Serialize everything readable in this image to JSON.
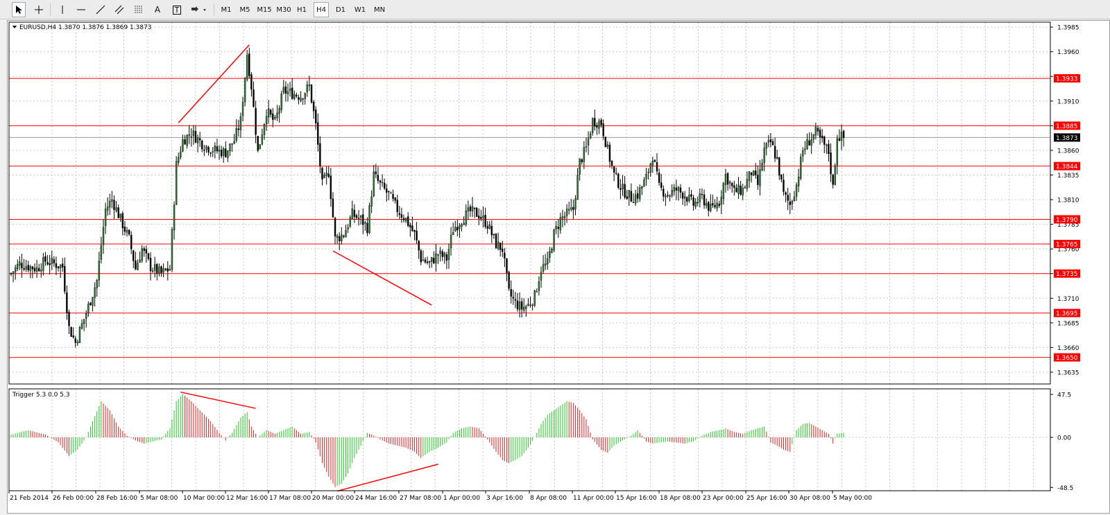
{
  "toolbar": {
    "timeframes": [
      "M1",
      "M5",
      "M15",
      "M30",
      "H1",
      "H4",
      "D1",
      "W1",
      "MN"
    ],
    "active_timeframe": "H4",
    "tools": [
      {
        "name": "cursor-icon"
      },
      {
        "name": "crosshair-icon"
      },
      {
        "name": "vertical-line-icon"
      },
      {
        "name": "horizontal-line-icon"
      },
      {
        "name": "trendline-icon"
      },
      {
        "name": "equidistant-channel-icon"
      },
      {
        "name": "fibonacci-icon"
      },
      {
        "name": "text-icon",
        "glyph": "A"
      },
      {
        "name": "text-label-icon",
        "glyph": "T"
      },
      {
        "name": "arrows-icon"
      }
    ]
  },
  "main_chart": {
    "header_text": "EURUSD,H4  1.3870 1.3876 1.3869 1.3873",
    "symbol": "EURUSD",
    "timeframe": "H4",
    "ohlc": {
      "open": "1.3870",
      "high": "1.3876",
      "low": "1.3869",
      "close": "1.3873"
    },
    "price_min": 1.3623,
    "price_max": 1.399,
    "price_ticks": [
      "1.3985",
      "1.3960",
      "1.3935",
      "1.3910",
      "1.3885",
      "1.3860",
      "1.3835",
      "1.3810",
      "1.3785",
      "1.3760",
      "1.3735",
      "1.3710",
      "1.3685",
      "1.3660",
      "1.3635"
    ],
    "current_price": "1.3873",
    "horizontal_levels": [
      "1.3933",
      "1.3885",
      "1.3844",
      "1.3790",
      "1.3765",
      "1.3735",
      "1.3695",
      "1.3650"
    ]
  },
  "indicator": {
    "label": "Trigger 5.3 0.0 5.3",
    "ticks": [
      "47.5",
      "0.00",
      "-48.5"
    ],
    "value_min": -49,
    "value_max": 49
  },
  "time_axis": [
    "21 Feb 2014",
    "26 Feb 00:00",
    "28 Feb 16:00",
    "5 Mar 08:00",
    "10 Mar 00:00",
    "12 Mar 16:00",
    "17 Mar 08:00",
    "20 Mar 00:00",
    "24 Mar 16:00",
    "27 Mar 08:00",
    "1 Apr 00:00",
    "3 Apr 16:00",
    "8 Apr 08:00",
    "11 Apr 00:00",
    "15 Apr 16:00",
    "18 Apr 08:00",
    "23 Apr 00:00",
    "25 Apr 16:00",
    "30 Apr 08:00",
    "5 May 00:00"
  ],
  "colors": {
    "bull_candle": "#2e7d2e",
    "bear_candle": "#000000",
    "level_line": "#ff0000",
    "grid": "#c8c8c8",
    "histogram_up": "#22cc22",
    "histogram_down": "#ee2222",
    "current_price_label": "#000000"
  },
  "chart_data": {
    "type": "candlestick",
    "symbol": "EURUSD",
    "timeframe": "H4",
    "anchors": [
      [
        0,
        1.3735
      ],
      [
        4,
        1.3745
      ],
      [
        12,
        1.374
      ],
      [
        16,
        1.3748
      ],
      [
        20,
        1.3745
      ],
      [
        24,
        1.3742
      ],
      [
        27,
        1.368
      ],
      [
        30,
        1.3665
      ],
      [
        35,
        1.3695
      ],
      [
        40,
        1.3728
      ],
      [
        44,
        1.38
      ],
      [
        47,
        1.381
      ],
      [
        51,
        1.379
      ],
      [
        55,
        1.377
      ],
      [
        58,
        1.374
      ],
      [
        61,
        1.376
      ],
      [
        65,
        1.3742
      ],
      [
        70,
        1.3735
      ],
      [
        74,
        1.374
      ],
      [
        77,
        1.3845
      ],
      [
        80,
        1.387
      ],
      [
        84,
        1.3878
      ],
      [
        90,
        1.3865
      ],
      [
        95,
        1.386
      ],
      [
        100,
        1.3858
      ],
      [
        104,
        1.387
      ],
      [
        107,
        1.389
      ],
      [
        110,
        1.3958
      ],
      [
        112,
        1.3925
      ],
      [
        115,
        1.3858
      ],
      [
        119,
        1.39
      ],
      [
        123,
        1.3888
      ],
      [
        127,
        1.392
      ],
      [
        131,
        1.3918
      ],
      [
        135,
        1.3915
      ],
      [
        139,
        1.3925
      ],
      [
        142,
        1.3885
      ],
      [
        145,
        1.3825
      ],
      [
        148,
        1.3838
      ],
      [
        151,
        1.377
      ],
      [
        155,
        1.3775
      ],
      [
        159,
        1.3795
      ],
      [
        163,
        1.379
      ],
      [
        166,
        1.3782
      ],
      [
        169,
        1.3835
      ],
      [
        172,
        1.3825
      ],
      [
        176,
        1.3815
      ],
      [
        180,
        1.38
      ],
      [
        184,
        1.379
      ],
      [
        188,
        1.3775
      ],
      [
        191,
        1.375
      ],
      [
        195,
        1.3745
      ],
      [
        199,
        1.3755
      ],
      [
        203,
        1.375
      ],
      [
        206,
        1.378
      ],
      [
        210,
        1.379
      ],
      [
        214,
        1.3798
      ],
      [
        218,
        1.3795
      ],
      [
        222,
        1.3785
      ],
      [
        226,
        1.3765
      ],
      [
        229,
        1.376
      ],
      [
        232,
        1.3715
      ],
      [
        235,
        1.3705
      ],
      [
        238,
        1.37
      ],
      [
        241,
        1.3703
      ],
      [
        244,
        1.3712
      ],
      [
        247,
        1.374
      ],
      [
        250,
        1.3745
      ],
      [
        253,
        1.3775
      ],
      [
        256,
        1.379
      ],
      [
        259,
        1.3795
      ],
      [
        262,
        1.38
      ],
      [
        265,
        1.3848
      ],
      [
        268,
        1.3862
      ],
      [
        271,
        1.389
      ],
      [
        275,
        1.3888
      ],
      [
        278,
        1.386
      ],
      [
        281,
        1.3835
      ],
      [
        285,
        1.382
      ],
      [
        289,
        1.3812
      ],
      [
        292,
        1.3815
      ],
      [
        296,
        1.3832
      ],
      [
        299,
        1.3855
      ],
      [
        302,
        1.3822
      ],
      [
        306,
        1.3815
      ],
      [
        310,
        1.382
      ],
      [
        314,
        1.3815
      ],
      [
        318,
        1.3805
      ],
      [
        322,
        1.3812
      ],
      [
        326,
        1.38
      ],
      [
        330,
        1.3808
      ],
      [
        333,
        1.3835
      ],
      [
        337,
        1.3818
      ],
      [
        341,
        1.382
      ],
      [
        345,
        1.3838
      ],
      [
        348,
        1.3825
      ],
      [
        351,
        1.386
      ],
      [
        354,
        1.3868
      ],
      [
        357,
        1.385
      ],
      [
        360,
        1.3815
      ],
      [
        363,
        1.3805
      ],
      [
        366,
        1.3825
      ],
      [
        369,
        1.386
      ],
      [
        372,
        1.387
      ],
      [
        375,
        1.3878
      ],
      [
        378,
        1.3868
      ],
      [
        381,
        1.3858
      ],
      [
        383,
        1.3822
      ],
      [
        385,
        1.3875
      ],
      [
        388,
        1.3873
      ]
    ],
    "indicator_anchors": [
      [
        0,
        3
      ],
      [
        8,
        8
      ],
      [
        16,
        3
      ],
      [
        22,
        -5
      ],
      [
        27,
        -18
      ],
      [
        31,
        -12
      ],
      [
        35,
        0
      ],
      [
        38,
        18
      ],
      [
        42,
        40
      ],
      [
        46,
        30
      ],
      [
        50,
        12
      ],
      [
        54,
        2
      ],
      [
        58,
        -3
      ],
      [
        62,
        -6
      ],
      [
        66,
        -4
      ],
      [
        70,
        -2
      ],
      [
        74,
        10
      ],
      [
        77,
        40
      ],
      [
        80,
        48
      ],
      [
        84,
        40
      ],
      [
        88,
        30
      ],
      [
        93,
        18
      ],
      [
        97,
        5
      ],
      [
        100,
        -3
      ],
      [
        103,
        5
      ],
      [
        107,
        22
      ],
      [
        110,
        28
      ],
      [
        112,
        12
      ],
      [
        115,
        0
      ],
      [
        119,
        8
      ],
      [
        123,
        4
      ],
      [
        127,
        8
      ],
      [
        131,
        12
      ],
      [
        135,
        4
      ],
      [
        139,
        6
      ],
      [
        142,
        -5
      ],
      [
        145,
        -25
      ],
      [
        148,
        -38
      ],
      [
        151,
        -48
      ],
      [
        154,
        -45
      ],
      [
        157,
        -35
      ],
      [
        160,
        -20
      ],
      [
        163,
        -8
      ],
      [
        166,
        5
      ],
      [
        169,
        2
      ],
      [
        172,
        -2
      ],
      [
        176,
        -6
      ],
      [
        180,
        -8
      ],
      [
        184,
        -10
      ],
      [
        188,
        -14
      ],
      [
        191,
        -20
      ],
      [
        195,
        -14
      ],
      [
        199,
        -10
      ],
      [
        203,
        -5
      ],
      [
        206,
        5
      ],
      [
        210,
        10
      ],
      [
        214,
        12
      ],
      [
        218,
        10
      ],
      [
        222,
        -2
      ],
      [
        226,
        -14
      ],
      [
        229,
        -22
      ],
      [
        232,
        -25
      ],
      [
        235,
        -22
      ],
      [
        238,
        -18
      ],
      [
        241,
        -10
      ],
      [
        244,
        0
      ],
      [
        247,
        15
      ],
      [
        250,
        25
      ],
      [
        253,
        30
      ],
      [
        256,
        35
      ],
      [
        259,
        40
      ],
      [
        262,
        38
      ],
      [
        265,
        30
      ],
      [
        268,
        20
      ],
      [
        271,
        -2
      ],
      [
        275,
        -12
      ],
      [
        278,
        -15
      ],
      [
        281,
        -8
      ],
      [
        285,
        -3
      ],
      [
        289,
        2
      ],
      [
        292,
        8
      ],
      [
        296,
        -4
      ],
      [
        299,
        -6
      ],
      [
        302,
        -5
      ],
      [
        306,
        -4
      ],
      [
        310,
        -5
      ],
      [
        314,
        -6
      ],
      [
        318,
        -4
      ],
      [
        322,
        2
      ],
      [
        326,
        6
      ],
      [
        330,
        8
      ],
      [
        333,
        10
      ],
      [
        337,
        6
      ],
      [
        341,
        4
      ],
      [
        345,
        8
      ],
      [
        348,
        10
      ],
      [
        351,
        12
      ],
      [
        354,
        -5
      ],
      [
        357,
        -8
      ],
      [
        360,
        -12
      ],
      [
        363,
        -14
      ],
      [
        366,
        8
      ],
      [
        369,
        15
      ],
      [
        372,
        16
      ],
      [
        375,
        12
      ],
      [
        378,
        8
      ],
      [
        381,
        4
      ],
      [
        383,
        -6
      ],
      [
        385,
        4
      ],
      [
        388,
        5
      ]
    ],
    "trendlines_price": [
      {
        "from": [
          78,
          1.3888
        ],
        "to": [
          111,
          1.3967
        ]
      },
      {
        "from": [
          150,
          1.3758
        ],
        "to": [
          196,
          1.3703
        ]
      }
    ],
    "trendlines_indicator": [
      {
        "from": [
          79,
          50
        ],
        "to": [
          114,
          32
        ]
      },
      {
        "from": [
          152,
          -52
        ],
        "to": [
          199,
          -26
        ]
      }
    ]
  }
}
